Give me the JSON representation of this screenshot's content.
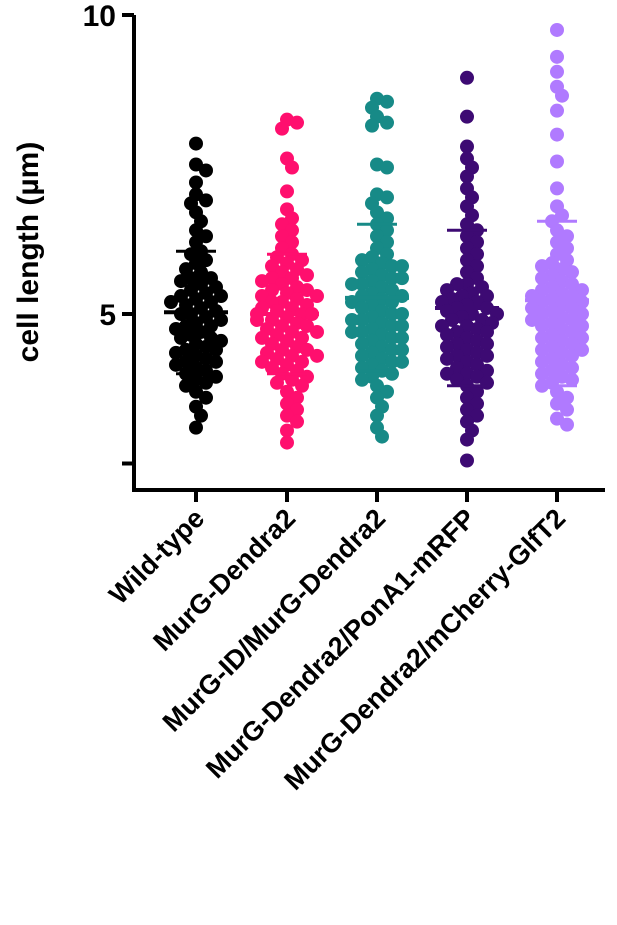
{
  "chart_data": {
    "type": "scatter",
    "subtype": "dot-plot-with-mean-and-sd",
    "title": "",
    "xlabel": "",
    "ylabel": "cell length (µm)",
    "ylim": [
      2.3,
      10
    ],
    "yticks": [
      {
        "value": 2.5,
        "label": ""
      },
      {
        "value": 5,
        "label": "5"
      },
      {
        "value": 10,
        "label": "10"
      }
    ],
    "grid": false,
    "legend": "none",
    "categories": [
      "Wild-type",
      "MurG-Dendra2",
      "MurG-ID/MurG-Dendra2",
      "MurG-Dendra2/PonA1-mRFP",
      "MurG-Dendra2/mCherry-GlfT2"
    ],
    "series": [
      {
        "color": "#000000",
        "mean": 5.03,
        "sd_upper": 6.05,
        "sd_lower": 4.0,
        "values": [
          7.85,
          7.5,
          7.4,
          7.2,
          7.0,
          6.9,
          6.85,
          6.7,
          6.55,
          6.4,
          6.3,
          6.2,
          6.05,
          6.0,
          5.9,
          5.85,
          5.75,
          5.7,
          5.6,
          5.55,
          5.5,
          5.45,
          5.4,
          5.35,
          5.3,
          5.25,
          5.2,
          5.15,
          5.1,
          5.05,
          5.0,
          5.0,
          4.95,
          4.9,
          4.85,
          4.8,
          4.75,
          4.7,
          4.65,
          4.6,
          4.55,
          4.5,
          4.45,
          4.4,
          4.35,
          4.3,
          4.25,
          4.2,
          4.15,
          4.1,
          4.05,
          4.0,
          3.95,
          3.9,
          3.85,
          3.8,
          3.7,
          3.6,
          3.45,
          3.3,
          3.1,
          4.6,
          4.4,
          5.2,
          5.6,
          4.8,
          4.2,
          5.3
        ]
      },
      {
        "color": "#ff0f6e",
        "mean": 5.0,
        "sd_upper": 6.0,
        "sd_lower": 4.0,
        "values": [
          8.25,
          8.2,
          8.1,
          7.6,
          7.45,
          7.05,
          6.75,
          6.6,
          6.5,
          6.4,
          6.3,
          6.2,
          6.1,
          6.0,
          5.95,
          5.9,
          5.85,
          5.8,
          5.75,
          5.7,
          5.65,
          5.6,
          5.55,
          5.5,
          5.45,
          5.4,
          5.35,
          5.3,
          5.25,
          5.2,
          5.15,
          5.1,
          5.05,
          5.0,
          5.0,
          4.95,
          4.9,
          4.85,
          4.8,
          4.75,
          4.7,
          4.65,
          4.6,
          4.55,
          4.5,
          4.45,
          4.4,
          4.35,
          4.3,
          4.25,
          4.2,
          4.15,
          4.1,
          4.05,
          4.0,
          3.95,
          3.9,
          3.85,
          3.8,
          3.7,
          3.6,
          3.5,
          3.4,
          3.3,
          3.2,
          3.05,
          2.85,
          4.9,
          5.2,
          4.6,
          5.4,
          4.4,
          5.0,
          4.8,
          5.6,
          4.2,
          5.3,
          4.7,
          5.1,
          4.3
        ]
      },
      {
        "color": "#178a87",
        "mean": 5.27,
        "sd_upper": 6.5,
        "sd_lower": 4.05,
        "values": [
          8.6,
          8.55,
          8.45,
          8.3,
          8.2,
          8.15,
          7.5,
          7.45,
          7.0,
          6.95,
          6.85,
          6.7,
          6.6,
          6.5,
          6.4,
          6.3,
          6.2,
          6.1,
          6.0,
          5.95,
          5.9,
          5.85,
          5.8,
          5.75,
          5.7,
          5.65,
          5.6,
          5.55,
          5.5,
          5.45,
          5.4,
          5.35,
          5.3,
          5.25,
          5.2,
          5.15,
          5.1,
          5.05,
          5.0,
          4.95,
          4.9,
          4.85,
          4.8,
          4.75,
          4.7,
          4.65,
          4.6,
          4.55,
          4.5,
          4.45,
          4.4,
          4.35,
          4.3,
          4.25,
          4.2,
          4.15,
          4.1,
          4.05,
          4.0,
          3.95,
          3.9,
          3.8,
          3.7,
          3.6,
          3.45,
          3.3,
          3.1,
          2.95,
          5.2,
          4.8,
          5.5,
          4.6,
          5.0,
          4.4,
          5.8,
          4.2,
          5.3,
          4.9,
          5.6,
          4.7
        ]
      },
      {
        "color": "#3d0a73",
        "mean": 5.1,
        "sd_upper": 6.4,
        "sd_lower": 3.8,
        "values": [
          8.95,
          8.3,
          7.8,
          7.6,
          7.45,
          7.3,
          7.1,
          6.95,
          6.8,
          6.65,
          6.5,
          6.4,
          6.3,
          6.2,
          6.1,
          6.0,
          5.9,
          5.8,
          5.7,
          5.6,
          5.5,
          5.45,
          5.4,
          5.35,
          5.3,
          5.25,
          5.2,
          5.15,
          5.1,
          5.05,
          5.0,
          4.95,
          4.9,
          4.85,
          4.8,
          4.75,
          4.7,
          4.65,
          4.6,
          4.55,
          4.5,
          4.45,
          4.4,
          4.35,
          4.3,
          4.25,
          4.2,
          4.15,
          4.1,
          4.05,
          4.0,
          3.95,
          3.9,
          3.85,
          3.8,
          3.7,
          3.6,
          3.5,
          3.4,
          3.3,
          3.2,
          3.05,
          2.9,
          2.55,
          5.0,
          4.7,
          5.3,
          4.5,
          4.9,
          5.5,
          4.3,
          5.1,
          4.8,
          4.0,
          5.2
        ]
      },
      {
        "color": "#b07aff",
        "mean": 5.23,
        "sd_upper": 6.55,
        "sd_lower": 3.8,
        "values": [
          9.75,
          9.3,
          9.05,
          8.8,
          8.65,
          8.4,
          8.0,
          7.55,
          7.1,
          6.8,
          6.65,
          6.55,
          6.4,
          6.3,
          6.2,
          6.1,
          6.0,
          5.9,
          5.85,
          5.8,
          5.75,
          5.7,
          5.65,
          5.6,
          5.55,
          5.5,
          5.45,
          5.4,
          5.35,
          5.3,
          5.25,
          5.2,
          5.15,
          5.1,
          5.05,
          5.0,
          4.95,
          4.9,
          4.85,
          4.8,
          4.75,
          4.7,
          4.65,
          4.6,
          4.55,
          4.5,
          4.45,
          4.4,
          4.35,
          4.3,
          4.25,
          4.2,
          4.15,
          4.1,
          4.05,
          4.0,
          3.95,
          3.9,
          3.85,
          3.8,
          3.7,
          3.6,
          3.5,
          3.4,
          3.25,
          3.15,
          5.0,
          4.8,
          5.3,
          4.6,
          5.1,
          4.9,
          5.4,
          4.4,
          5.2
        ]
      }
    ]
  }
}
